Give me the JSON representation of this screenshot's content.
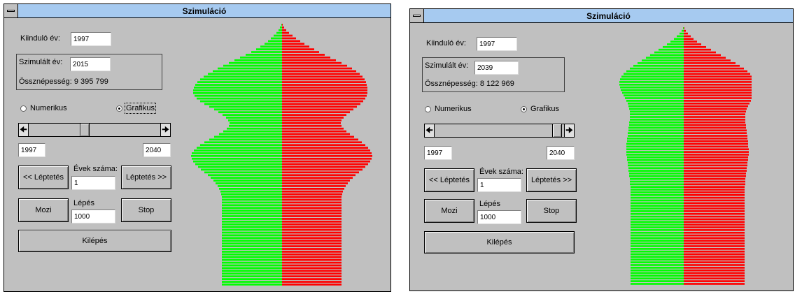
{
  "windows": [
    {
      "title": "Szimuláció",
      "start_year_label": "Kiinduló év:",
      "start_year_value": "1997",
      "sim_year_label": "Szimulált év:",
      "sim_year_value": "2015",
      "population_text": "Össznépesség: 9 395 799",
      "radio_numeric": "Numerikus",
      "radio_graphic": "Grafikus",
      "selected_mode": "Grafikus",
      "slider": {
        "min": 1997,
        "max": 2040,
        "value": 2015,
        "fraction": 0.42
      },
      "range_min_value": "1997",
      "range_max_value": "2040",
      "step_back_label": "<< Léptetés",
      "years_count_label": "Évek száma:",
      "years_count_value": "1",
      "step_forward_label": "Léptetés >>",
      "movie_label": "Mozi",
      "step_label": "Lépés",
      "step_value": "1000",
      "stop_label": "Stop",
      "exit_label": "Kilépés",
      "pyramid": {
        "colors": {
          "left": "#00ff00",
          "right": "#ff0000"
        },
        "left": [
          1,
          3,
          5,
          8,
          12,
          16,
          20,
          25,
          31,
          37,
          44,
          52,
          60,
          68,
          76,
          84,
          92,
          99,
          106,
          112,
          117,
          121,
          124,
          126,
          127,
          127,
          125,
          122,
          117,
          111,
          104,
          97,
          91,
          85,
          80,
          77,
          75,
          76,
          79,
          84,
          90,
          97,
          104,
          111,
          117,
          122,
          126,
          129,
          130,
          129,
          127,
          124,
          120,
          116,
          111,
          106,
          102,
          98,
          95,
          92,
          90,
          88,
          87,
          86,
          86,
          86,
          86,
          86,
          86,
          86,
          86,
          86,
          86,
          86,
          86,
          86,
          86,
          86,
          86,
          86,
          86,
          86,
          86,
          86,
          86,
          86,
          86,
          86,
          86,
          86,
          86,
          86,
          86,
          86,
          86,
          86
        ],
        "right": [
          1,
          3,
          6,
          10,
          15,
          20,
          26,
          32,
          39,
          46,
          53,
          61,
          69,
          77,
          85,
          93,
          100,
          106,
          111,
          115,
          118,
          120,
          121,
          122,
          122,
          122,
          121,
          119,
          116,
          112,
          107,
          102,
          97,
          92,
          88,
          85,
          84,
          85,
          88,
          92,
          97,
          103,
          109,
          114,
          119,
          123,
          126,
          128,
          129,
          128,
          126,
          123,
          119,
          115,
          110,
          105,
          101,
          97,
          94,
          91,
          89,
          87,
          86,
          85,
          85,
          85,
          85,
          85,
          85,
          85,
          85,
          85,
          85,
          85,
          85,
          85,
          85,
          85,
          85,
          85,
          85,
          85,
          85,
          85,
          85,
          85,
          85,
          85,
          85,
          85,
          85,
          85,
          85,
          85,
          85,
          85
        ]
      }
    },
    {
      "title": "Szimuláció",
      "start_year_label": "Kiinduló év:",
      "start_year_value": "1997",
      "sim_year_label": "Szimulált év:",
      "sim_year_value": "2039",
      "population_text": "Össznépesség: 8 122 969",
      "radio_numeric": "Numerikus",
      "radio_graphic": "Grafikus",
      "selected_mode": "Grafikus",
      "slider": {
        "min": 1997,
        "max": 2040,
        "value": 2039,
        "fraction": 0.98
      },
      "range_min_value": "1997",
      "range_max_value": "2040",
      "step_back_label": "<< Léptetés",
      "years_count_label": "Évek száma:",
      "years_count_value": "1",
      "step_forward_label": "Léptetés >>",
      "movie_label": "Mozi",
      "step_label": "Lépés",
      "step_value": "1000",
      "stop_label": "Stop",
      "exit_label": "Kilépés",
      "pyramid": {
        "colors": {
          "left": "#00ff00",
          "right": "#ff0000"
        },
        "left": [
          1,
          3,
          6,
          10,
          14,
          19,
          24,
          30,
          36,
          42,
          48,
          54,
          60,
          66,
          72,
          77,
          82,
          86,
          89,
          91,
          92,
          92,
          91,
          90,
          88,
          86,
          84,
          82,
          80,
          79,
          78,
          77,
          77,
          77,
          77,
          78,
          78,
          79,
          79,
          80,
          80,
          81,
          81,
          82,
          82,
          82,
          82,
          82,
          81,
          81,
          80,
          80,
          79,
          79,
          78,
          78,
          77,
          77,
          77,
          76,
          76,
          76,
          76,
          76,
          76,
          76,
          76,
          76,
          76,
          76,
          76,
          76,
          76,
          76,
          76,
          76,
          76,
          76,
          76,
          76,
          76,
          76,
          76,
          76,
          76,
          76,
          76,
          76,
          76,
          76,
          76,
          76,
          76,
          76,
          76,
          76
        ],
        "right": [
          1,
          3,
          6,
          10,
          14,
          19,
          25,
          32,
          39,
          46,
          53,
          60,
          67,
          74,
          80,
          86,
          91,
          95,
          99,
          102,
          104,
          105,
          105,
          104,
          102,
          100,
          98,
          96,
          94,
          92,
          90,
          89,
          88,
          88,
          88,
          88,
          89,
          89,
          90,
          90,
          91,
          91,
          92,
          92,
          92,
          93,
          93,
          93,
          92,
          92,
          91,
          91,
          90,
          90,
          89,
          89,
          88,
          88,
          88,
          87,
          87,
          87,
          87,
          87,
          87,
          87,
          87,
          87,
          87,
          87,
          87,
          87,
          87,
          87,
          87,
          87,
          87,
          87,
          87,
          87,
          87,
          87,
          87,
          87,
          87,
          87,
          87,
          87,
          87,
          87,
          87,
          87,
          87,
          87,
          87,
          87
        ]
      }
    }
  ]
}
